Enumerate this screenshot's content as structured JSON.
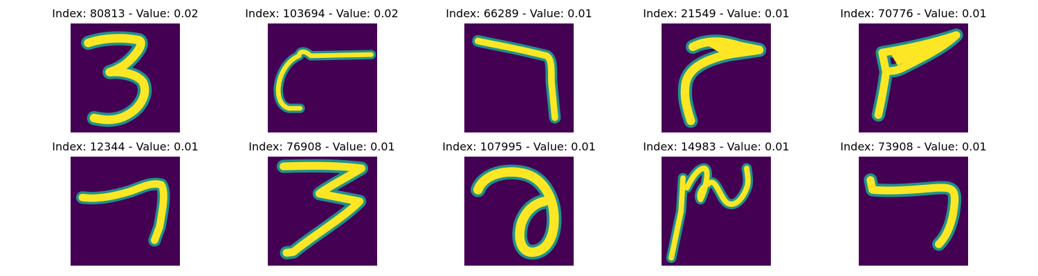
{
  "figure": {
    "panels": [
      {
        "title": "Index: 80813 - Value: 0.02",
        "digit": "3"
      },
      {
        "title": "Index: 103694 - Value: 0.02",
        "digit": "hook"
      },
      {
        "title": "Index: 66289 - Value: 0.01",
        "digit": "7-angle"
      },
      {
        "title": "Index: 21549 - Value: 0.01",
        "digit": "7-curved"
      },
      {
        "title": "Index: 70776 - Value: 0.01",
        "digit": "7-slanted"
      },
      {
        "title": "Index: 12344 - Value: 0.01",
        "digit": "7"
      },
      {
        "title": "Index: 76908 - Value: 0.01",
        "digit": "3-sharp"
      },
      {
        "title": "Index: 107995 - Value: 0.01",
        "digit": "a-loop"
      },
      {
        "title": "Index: 14983 - Value: 0.01",
        "digit": "squiggle"
      },
      {
        "title": "Index: 73908 - Value: 0.01",
        "digit": "7-short"
      }
    ],
    "colors": {
      "background": "#440154",
      "stroke_core": "#fde725",
      "stroke_edge": "#21918c"
    }
  }
}
